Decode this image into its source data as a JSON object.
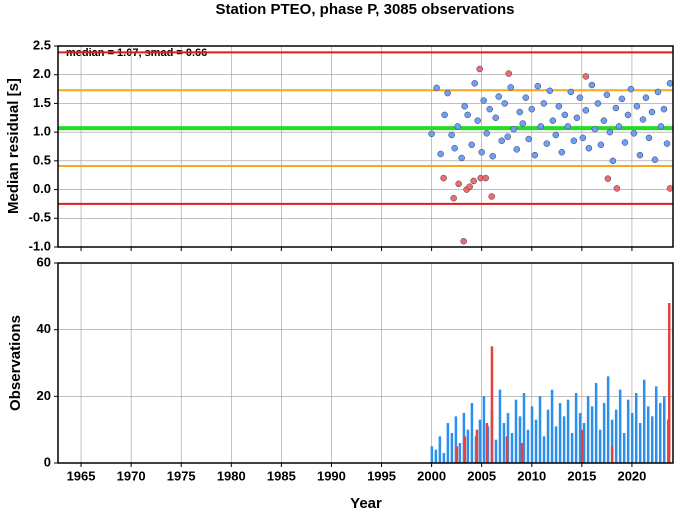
{
  "chart_data": [
    {
      "type": "scatter",
      "title": "Station PTEO, phase P, 3085 observations",
      "ylabel": "Median residual [s]",
      "annotation": "median = 1.07, smad = 0.66",
      "xlim": [
        1962.7,
        2024.1
      ],
      "ylim": [
        -1.0,
        2.5
      ],
      "yticks": [
        2.5,
        {
          "value": 2,
          "label": "2.0"
        },
        1.5,
        {
          "value": 1,
          "label": "1.0"
        },
        0.5,
        {
          "value": 0,
          "label": "0.0"
        },
        -0.5,
        {
          "value": -1,
          "label": "-1.0"
        }
      ],
      "grid": true,
      "hlines": [
        {
          "value": 2.39,
          "color": "#e31a1c"
        },
        {
          "value": 1.73,
          "color": "#f4a81d"
        },
        {
          "value": 1.07,
          "color": "#22dd22"
        },
        {
          "value": 0.41,
          "color": "#f4a81d"
        },
        {
          "value": -0.25,
          "color": "#e31a1c"
        }
      ],
      "series": [
        {
          "color": "#6f9ff5",
          "x": [
            2000.0,
            2000.5,
            2000.9,
            2001.3,
            2001.6,
            2002.0,
            2002.3,
            2002.6,
            2003.0,
            2003.3,
            2003.6,
            2004.0,
            2004.3,
            2004.6,
            2005.0,
            2005.2,
            2005.5,
            2005.8,
            2006.1,
            2006.4,
            2006.7,
            2007.0,
            2007.3,
            2007.6,
            2007.9,
            2008.2,
            2008.5,
            2008.8,
            2009.1,
            2009.4,
            2009.7,
            2010.0,
            2010.3,
            2010.6,
            2010.9,
            2011.2,
            2011.5,
            2011.8,
            2012.1,
            2012.4,
            2012.7,
            2013.0,
            2013.3,
            2013.6,
            2013.9,
            2014.2,
            2014.5,
            2014.8,
            2015.1,
            2015.4,
            2015.7,
            2016.0,
            2016.3,
            2016.6,
            2016.9,
            2017.2,
            2017.5,
            2017.8,
            2018.1,
            2018.4,
            2018.7,
            2019.0,
            2019.3,
            2019.6,
            2019.9,
            2020.2,
            2020.5,
            2020.8,
            2021.1,
            2021.4,
            2021.7,
            2022.0,
            2022.3,
            2022.6,
            2022.9,
            2023.2,
            2023.5,
            2023.8
          ],
          "values": [
            0.97,
            1.77,
            0.62,
            1.3,
            1.68,
            0.95,
            0.72,
            1.1,
            0.55,
            1.45,
            1.3,
            0.78,
            1.85,
            1.2,
            0.65,
            1.55,
            0.98,
            1.4,
            0.58,
            1.25,
            1.62,
            0.85,
            1.5,
            0.92,
            1.78,
            1.05,
            0.7,
            1.35,
            1.15,
            1.6,
            0.88,
            1.4,
            0.6,
            1.8,
            1.1,
            1.5,
            0.8,
            1.72,
            1.2,
            0.95,
            1.45,
            0.65,
            1.3,
            1.1,
            1.7,
            0.85,
            1.25,
            1.6,
            0.9,
            1.38,
            0.72,
            1.82,
            1.05,
            1.5,
            0.78,
            1.2,
            1.65,
            1.0,
            0.5,
            1.42,
            1.1,
            1.58,
            0.82,
            1.3,
            1.75,
            0.98,
            1.45,
            0.6,
            1.22,
            1.6,
            0.9,
            1.35,
            0.52,
            1.7,
            1.1,
            1.4,
            0.8,
            1.85
          ]
        },
        {
          "color": "#f26b6b",
          "x": [
            2001.2,
            2002.2,
            2002.7,
            2003.2,
            2003.5,
            2003.8,
            2004.2,
            2004.8,
            2004.9,
            2005.4,
            2006.0,
            2007.7,
            2015.4,
            2017.6,
            2018.5,
            2023.8
          ],
          "values": [
            0.2,
            -0.15,
            0.1,
            -0.9,
            0.0,
            0.05,
            0.15,
            2.1,
            0.2,
            0.2,
            -0.12,
            2.02,
            1.97,
            0.19,
            0.02,
            0.02
          ]
        }
      ]
    },
    {
      "type": "bar",
      "ylabel": "Observations",
      "xlabel": "Year",
      "xlim": [
        1962.7,
        2024.1
      ],
      "ylim": [
        0,
        60
      ],
      "xticks": [
        1965,
        1970,
        1975,
        1980,
        1985,
        1990,
        1995,
        2000,
        2005,
        2010,
        2015,
        2020
      ],
      "yticks": [
        0,
        20,
        40,
        60
      ],
      "grid": true,
      "series": [
        {
          "color": "#2b8ff0",
          "x": [
            2000.0,
            2000.4,
            2000.8,
            2001.2,
            2001.6,
            2002.0,
            2002.4,
            2002.8,
            2003.2,
            2003.6,
            2004.0,
            2004.4,
            2004.8,
            2005.2,
            2005.6,
            2006.0,
            2006.4,
            2006.8,
            2007.2,
            2007.6,
            2008.0,
            2008.4,
            2008.8,
            2009.2,
            2009.6,
            2010.0,
            2010.4,
            2010.8,
            2011.2,
            2011.6,
            2012.0,
            2012.4,
            2012.8,
            2013.2,
            2013.6,
            2014.0,
            2014.4,
            2014.8,
            2015.2,
            2015.6,
            2016.0,
            2016.4,
            2016.8,
            2017.2,
            2017.6,
            2018.0,
            2018.4,
            2018.8,
            2019.2,
            2019.6,
            2020.0,
            2020.4,
            2020.8,
            2021.2,
            2021.6,
            2022.0,
            2022.4,
            2022.8,
            2023.2,
            2023.6
          ],
          "values": [
            5,
            4,
            8,
            3,
            12,
            9,
            14,
            6,
            15,
            10,
            18,
            8,
            13,
            20,
            11,
            16,
            7,
            22,
            12,
            15,
            9,
            19,
            14,
            21,
            10,
            17,
            13,
            20,
            8,
            16,
            22,
            11,
            18,
            14,
            19,
            9,
            21,
            15,
            12,
            20,
            17,
            24,
            10,
            18,
            26,
            13,
            16,
            22,
            9,
            19,
            15,
            21,
            12,
            25,
            17,
            14,
            23,
            18,
            20,
            13
          ]
        },
        {
          "color": "#e8403a",
          "x": [
            2002.5,
            2003.3,
            2004.5,
            2005.5,
            2006.0,
            2007.5,
            2009.0,
            2015.0,
            2018.0,
            2023.7
          ],
          "values": [
            5,
            8,
            10,
            12,
            35,
            8,
            6,
            10,
            5,
            48
          ]
        }
      ]
    }
  ]
}
